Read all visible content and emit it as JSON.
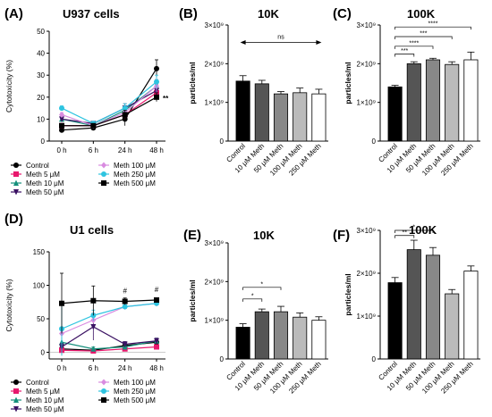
{
  "chart_data": [
    {
      "panel": "(A)",
      "type": "line",
      "title": "U937 cells",
      "ylabel": "Cytotoxicity (%)",
      "xlabel": "",
      "categories": [
        "0 h",
        "6 h",
        "24 h",
        "48 h"
      ],
      "ylim": [
        0,
        50
      ],
      "yticks": [
        "0",
        "10",
        "20",
        "30",
        "40",
        "50"
      ],
      "annotation": "**",
      "series": [
        {
          "name": "Control",
          "color": "#000000",
          "marker": "circle",
          "values": [
            5,
            6,
            10,
            33
          ],
          "err": [
            1,
            1,
            3,
            4
          ]
        },
        {
          "name": "Meth 5 μM",
          "color": "#e8186d",
          "marker": "square",
          "values": [
            7,
            7,
            12,
            22
          ],
          "err": [
            1,
            1,
            2,
            3
          ]
        },
        {
          "name": "Meth 10 μM",
          "color": "#15907c",
          "marker": "triangle-up",
          "values": [
            10,
            7,
            14,
            25
          ],
          "err": [
            1,
            1,
            2,
            3
          ]
        },
        {
          "name": "Meth 50 μM",
          "color": "#3b1263",
          "marker": "triangle-down",
          "values": [
            10,
            8,
            15,
            23
          ],
          "err": [
            1,
            1,
            2,
            3
          ]
        },
        {
          "name": "Meth 100 μM",
          "color": "#d98be0",
          "marker": "diamond",
          "values": [
            12,
            7,
            13,
            25
          ],
          "err": [
            1,
            1,
            2,
            3
          ]
        },
        {
          "name": "Meth 250 μM",
          "color": "#2ec4e0",
          "marker": "circle",
          "values": [
            15,
            8,
            15,
            27
          ],
          "err": [
            1,
            1,
            2,
            3
          ]
        },
        {
          "name": "Meth 500 μM",
          "color": "#000000",
          "marker": "square",
          "values": [
            7,
            7,
            12,
            20
          ],
          "err": [
            1,
            1,
            2,
            2
          ]
        }
      ]
    },
    {
      "panel": "(B)",
      "type": "bar",
      "title": "10K",
      "ylabel": "particles/ml",
      "categories": [
        "Control",
        "10 μM Meth",
        "50 μM Meth",
        "100 μM Meth",
        "250 μM Meth"
      ],
      "values": [
        1.55,
        1.48,
        1.22,
        1.25,
        1.22
      ],
      "err": [
        0.14,
        0.09,
        0.06,
        0.12,
        0.12
      ],
      "ylim": [
        0,
        3
      ],
      "yticks": [
        "0",
        "1×10⁹",
        "2×10⁹",
        "3×10⁹"
      ],
      "colors": [
        "#000000",
        "#555555",
        "#888888",
        "#bbbbbb",
        "#ffffff"
      ],
      "significance": [
        {
          "label": "ns",
          "from": 0,
          "to": 4,
          "y": 2.55,
          "style": "arrow"
        }
      ]
    },
    {
      "panel": "(C)",
      "type": "bar",
      "title": "100K",
      "ylabel": "particles/ml",
      "categories": [
        "Control",
        "10 μM Meth",
        "50 μM Meth",
        "100 μM Meth",
        "250 μM Meth"
      ],
      "values": [
        1.4,
        2.0,
        2.1,
        1.98,
        2.1
      ],
      "err": [
        0.04,
        0.05,
        0.04,
        0.07,
        0.2
      ],
      "ylim": [
        0,
        3
      ],
      "yticks": [
        "0",
        "1×10⁹",
        "2×10⁹",
        "3×10⁹"
      ],
      "colors": [
        "#000000",
        "#555555",
        "#888888",
        "#bbbbbb",
        "#ffffff"
      ],
      "significance": [
        {
          "label": "***",
          "from": 0,
          "to": 1,
          "y": 2.25
        },
        {
          "label": "****",
          "from": 0,
          "to": 2,
          "y": 2.45
        },
        {
          "label": "***",
          "from": 0,
          "to": 3,
          "y": 2.7
        },
        {
          "label": "****",
          "from": 0,
          "to": 4,
          "y": 2.95
        }
      ]
    },
    {
      "panel": "(D)",
      "type": "line",
      "title": "U1 cells",
      "ylabel": "Cytotoxicity (%)",
      "xlabel": "",
      "categories": [
        "0 h",
        "6 h",
        "24 h",
        "48 h"
      ],
      "ylim": [
        -10,
        150
      ],
      "yticks": [
        "0",
        "50",
        "100",
        "150"
      ],
      "markers": [
        "#",
        "#"
      ],
      "series": [
        {
          "name": "Control",
          "color": "#000000",
          "marker": "circle",
          "values": [
            5,
            3,
            10,
            15
          ],
          "err": [
            2,
            2,
            3,
            3
          ]
        },
        {
          "name": "Meth 5 μM",
          "color": "#e8186d",
          "marker": "square",
          "values": [
            3,
            2,
            5,
            8
          ],
          "err": [
            1,
            1,
            2,
            2
          ]
        },
        {
          "name": "Meth 10 μM",
          "color": "#15907c",
          "marker": "triangle-up",
          "values": [
            15,
            5,
            8,
            17
          ],
          "err": [
            20,
            3,
            3,
            4
          ]
        },
        {
          "name": "Meth 50 μM",
          "color": "#3b1263",
          "marker": "triangle-down",
          "values": [
            8,
            38,
            12,
            17
          ],
          "err": [
            5,
            20,
            4,
            4
          ]
        },
        {
          "name": "Meth 100 μM",
          "color": "#d98be0",
          "marker": "diamond",
          "values": [
            28,
            48,
            68,
            73
          ],
          "err": [
            5,
            5,
            3,
            3
          ]
        },
        {
          "name": "Meth 250 μM",
          "color": "#2ec4e0",
          "marker": "circle",
          "values": [
            35,
            55,
            68,
            73
          ],
          "err": [
            40,
            8,
            3,
            3
          ]
        },
        {
          "name": "Meth 500 μM",
          "color": "#000000",
          "marker": "square",
          "values": [
            73,
            77,
            76,
            78
          ],
          "err": [
            45,
            22,
            5,
            3
          ]
        }
      ]
    },
    {
      "panel": "(E)",
      "type": "bar",
      "title": "10K",
      "ylabel": "particles/ml",
      "categories": [
        "Control",
        "10 μM Meth",
        "50 μM Meth",
        "100 μM Meth",
        "250 μM Meth"
      ],
      "values": [
        0.82,
        1.22,
        1.22,
        1.08,
        1.0
      ],
      "err": [
        0.09,
        0.07,
        0.14,
        0.11,
        0.09
      ],
      "ylim": [
        0,
        3
      ],
      "yticks": [
        "0",
        "1×10⁹",
        "2×10⁹",
        "3×10⁹"
      ],
      "colors": [
        "#000000",
        "#555555",
        "#888888",
        "#bbbbbb",
        "#ffffff"
      ],
      "significance": [
        {
          "label": "*",
          "from": 0,
          "to": 1,
          "y": 1.55
        },
        {
          "label": "*",
          "from": 0,
          "to": 2,
          "y": 1.85
        }
      ]
    },
    {
      "panel": "(F)",
      "type": "bar",
      "title": "100K",
      "ylabel": "particles/ml",
      "categories": [
        "Control",
        "10 μM Meth",
        "50 μM Meth",
        "100 μM Meth",
        "250 μM Meth"
      ],
      "values": [
        1.78,
        2.55,
        2.42,
        1.52,
        2.05
      ],
      "err": [
        0.12,
        0.22,
        0.18,
        0.1,
        0.12
      ],
      "ylim": [
        0,
        3
      ],
      "yticks": [
        "0",
        "1×10⁹",
        "2×10⁹",
        "3×10⁹"
      ],
      "colors": [
        "#000000",
        "#555555",
        "#888888",
        "#bbbbbb",
        "#ffffff"
      ],
      "significance": [
        {
          "label": "**",
          "from": 0,
          "to": 1,
          "y": 2.88
        },
        {
          "label": "*",
          "from": 0,
          "to": 2,
          "y": 3.0
        }
      ]
    }
  ]
}
